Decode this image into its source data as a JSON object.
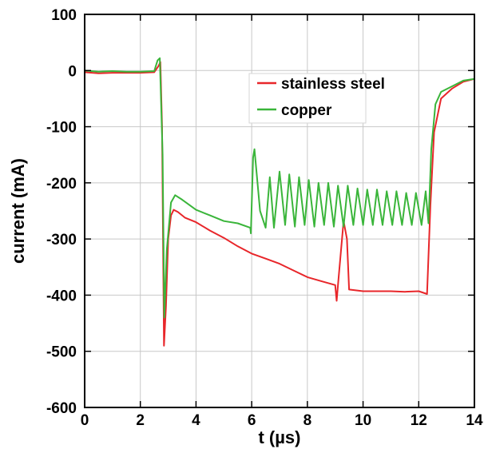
{
  "chart_data": {
    "type": "line",
    "xlabel": "t (µs)",
    "ylabel": "current (mA)",
    "xlim": [
      0,
      14
    ],
    "ylim": [
      -600,
      100
    ],
    "xticks": [
      0,
      2,
      4,
      6,
      8,
      10,
      12,
      14
    ],
    "yticks": [
      100,
      0,
      -100,
      -200,
      -300,
      -400,
      -500,
      -600
    ],
    "grid": true,
    "legend_position": "top-right",
    "series": [
      {
        "name": "stainless steel",
        "color": "#e8262a",
        "points": [
          [
            0.0,
            -3
          ],
          [
            0.5,
            -5
          ],
          [
            1.0,
            -4
          ],
          [
            1.5,
            -4
          ],
          [
            2.0,
            -4
          ],
          [
            2.5,
            -3
          ],
          [
            2.65,
            8
          ],
          [
            2.72,
            15
          ],
          [
            2.78,
            -100
          ],
          [
            2.85,
            -490
          ],
          [
            2.92,
            -420
          ],
          [
            3.0,
            -300
          ],
          [
            3.1,
            -258
          ],
          [
            3.2,
            -248
          ],
          [
            3.35,
            -252
          ],
          [
            3.6,
            -262
          ],
          [
            4.0,
            -270
          ],
          [
            4.5,
            -285
          ],
          [
            5.0,
            -298
          ],
          [
            5.5,
            -313
          ],
          [
            6.0,
            -326
          ],
          [
            6.5,
            -335
          ],
          [
            7.0,
            -344
          ],
          [
            7.5,
            -356
          ],
          [
            8.0,
            -368
          ],
          [
            8.5,
            -375
          ],
          [
            9.0,
            -382
          ],
          [
            9.05,
            -410
          ],
          [
            9.12,
            -370
          ],
          [
            9.3,
            -268
          ],
          [
            9.42,
            -300
          ],
          [
            9.5,
            -390
          ],
          [
            10.0,
            -393
          ],
          [
            10.5,
            -393
          ],
          [
            11.0,
            -393
          ],
          [
            11.5,
            -394
          ],
          [
            12.0,
            -393
          ],
          [
            12.3,
            -398
          ],
          [
            12.42,
            -240
          ],
          [
            12.55,
            -110
          ],
          [
            12.8,
            -50
          ],
          [
            13.2,
            -32
          ],
          [
            13.6,
            -20
          ],
          [
            14.0,
            -15
          ]
        ]
      },
      {
        "name": "copper",
        "color": "#3ab53a",
        "points": [
          [
            0.0,
            0
          ],
          [
            0.5,
            -2
          ],
          [
            1.0,
            -1
          ],
          [
            1.5,
            -2
          ],
          [
            2.0,
            -2
          ],
          [
            2.5,
            -1
          ],
          [
            2.62,
            18
          ],
          [
            2.7,
            22
          ],
          [
            2.8,
            -150
          ],
          [
            2.86,
            -440
          ],
          [
            2.95,
            -320
          ],
          [
            3.1,
            -235
          ],
          [
            3.25,
            -222
          ],
          [
            3.5,
            -230
          ],
          [
            4.0,
            -248
          ],
          [
            4.5,
            -258
          ],
          [
            5.0,
            -268
          ],
          [
            5.5,
            -272
          ],
          [
            5.95,
            -280
          ],
          [
            5.97,
            -290
          ],
          [
            6.05,
            -155
          ],
          [
            6.1,
            -140
          ],
          [
            6.3,
            -250
          ],
          [
            6.5,
            -280
          ],
          [
            6.65,
            -190
          ],
          [
            6.8,
            -280
          ],
          [
            7.0,
            -180
          ],
          [
            7.2,
            -275
          ],
          [
            7.35,
            -185
          ],
          [
            7.55,
            -278
          ],
          [
            7.7,
            -190
          ],
          [
            7.9,
            -275
          ],
          [
            8.05,
            -195
          ],
          [
            8.25,
            -278
          ],
          [
            8.4,
            -200
          ],
          [
            8.6,
            -275
          ],
          [
            8.75,
            -200
          ],
          [
            8.95,
            -278
          ],
          [
            9.1,
            -205
          ],
          [
            9.3,
            -278
          ],
          [
            9.45,
            -205
          ],
          [
            9.65,
            -275
          ],
          [
            9.8,
            -210
          ],
          [
            10.0,
            -275
          ],
          [
            10.15,
            -212
          ],
          [
            10.35,
            -275
          ],
          [
            10.5,
            -212
          ],
          [
            10.7,
            -275
          ],
          [
            10.85,
            -215
          ],
          [
            11.05,
            -275
          ],
          [
            11.2,
            -215
          ],
          [
            11.4,
            -275
          ],
          [
            11.55,
            -218
          ],
          [
            11.75,
            -275
          ],
          [
            11.9,
            -218
          ],
          [
            12.1,
            -275
          ],
          [
            12.25,
            -215
          ],
          [
            12.35,
            -272
          ],
          [
            12.45,
            -140
          ],
          [
            12.6,
            -60
          ],
          [
            12.8,
            -38
          ],
          [
            13.2,
            -28
          ],
          [
            13.6,
            -18
          ],
          [
            14.0,
            -15
          ]
        ]
      }
    ]
  }
}
